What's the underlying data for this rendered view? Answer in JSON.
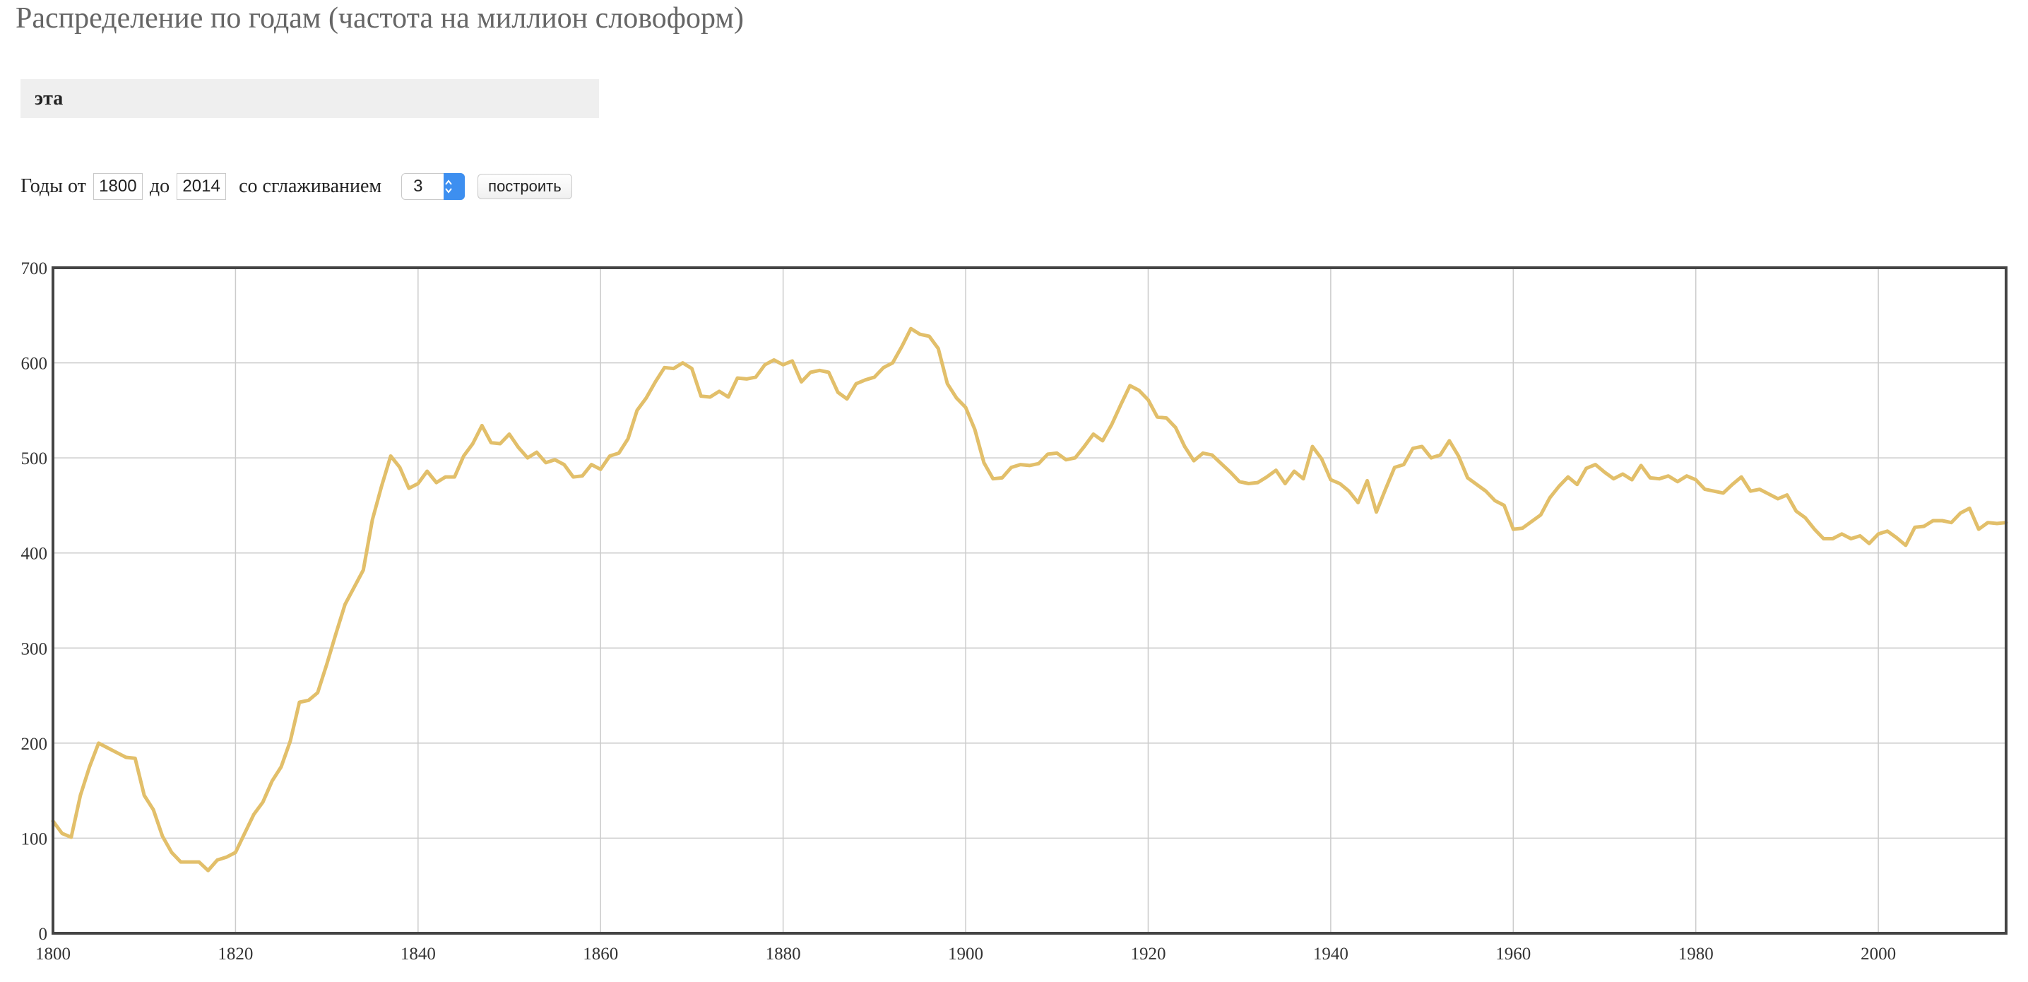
{
  "title": "Распределение по годам (частота на миллион словоформ)",
  "query": "эта",
  "controls": {
    "years_from_label": "Годы от",
    "year_from": "1800",
    "to_label": "до",
    "year_to": "2014",
    "smoothing_label": "со сглаживанием",
    "smoothing": "3",
    "build_label": "построить"
  },
  "colors": {
    "line": "#e2bf6a",
    "grid": "#cccccc",
    "frame": "#444444"
  },
  "chart_data": {
    "type": "line",
    "title": "",
    "xlabel": "",
    "ylabel": "",
    "xlim": [
      1800,
      2014
    ],
    "ylim": [
      0,
      700
    ],
    "grid": true,
    "x_ticks": [
      "1800",
      "1820",
      "1840",
      "1860",
      "1880",
      "1900",
      "1920",
      "1940",
      "1960",
      "1980",
      "2000"
    ],
    "y_ticks": [
      "0",
      "100",
      "200",
      "300",
      "400",
      "500",
      "600",
      "700"
    ],
    "series": [
      {
        "name": "",
        "points": [
          [
            1800,
            118
          ],
          [
            1801,
            105
          ],
          [
            1802,
            101
          ],
          [
            1803,
            145
          ],
          [
            1804,
            175
          ],
          [
            1805,
            200
          ],
          [
            1806,
            195
          ],
          [
            1807,
            190
          ],
          [
            1808,
            185
          ],
          [
            1809,
            184
          ],
          [
            1810,
            145
          ],
          [
            1811,
            130
          ],
          [
            1812,
            102
          ],
          [
            1813,
            85
          ],
          [
            1814,
            75
          ],
          [
            1815,
            75
          ],
          [
            1816,
            75
          ],
          [
            1817,
            66
          ],
          [
            1818,
            77
          ],
          [
            1819,
            80
          ],
          [
            1820,
            85
          ],
          [
            1821,
            105
          ],
          [
            1822,
            125
          ],
          [
            1823,
            138
          ],
          [
            1824,
            160
          ],
          [
            1825,
            175
          ],
          [
            1826,
            202
          ],
          [
            1827,
            243
          ],
          [
            1828,
            245
          ],
          [
            1829,
            253
          ],
          [
            1830,
            283
          ],
          [
            1831,
            315
          ],
          [
            1832,
            346
          ],
          [
            1833,
            364
          ],
          [
            1834,
            382
          ],
          [
            1835,
            435
          ],
          [
            1836,
            470
          ],
          [
            1837,
            502
          ],
          [
            1838,
            490
          ],
          [
            1839,
            468
          ],
          [
            1840,
            473
          ],
          [
            1841,
            486
          ],
          [
            1842,
            474
          ],
          [
            1843,
            480
          ],
          [
            1844,
            480
          ],
          [
            1845,
            502
          ],
          [
            1846,
            515
          ],
          [
            1847,
            534
          ],
          [
            1848,
            516
          ],
          [
            1849,
            515
          ],
          [
            1850,
            525
          ],
          [
            1851,
            511
          ],
          [
            1852,
            500
          ],
          [
            1853,
            506
          ],
          [
            1854,
            495
          ],
          [
            1855,
            498
          ],
          [
            1856,
            493
          ],
          [
            1857,
            480
          ],
          [
            1858,
            481
          ],
          [
            1859,
            493
          ],
          [
            1860,
            488
          ],
          [
            1861,
            502
          ],
          [
            1862,
            505
          ],
          [
            1863,
            520
          ],
          [
            1864,
            550
          ],
          [
            1865,
            563
          ],
          [
            1866,
            580
          ],
          [
            1867,
            595
          ],
          [
            1868,
            594
          ],
          [
            1869,
            600
          ],
          [
            1870,
            594
          ],
          [
            1871,
            565
          ],
          [
            1872,
            564
          ],
          [
            1873,
            570
          ],
          [
            1874,
            564
          ],
          [
            1875,
            584
          ],
          [
            1876,
            583
          ],
          [
            1877,
            585
          ],
          [
            1878,
            598
          ],
          [
            1879,
            603
          ],
          [
            1880,
            598
          ],
          [
            1881,
            602
          ],
          [
            1882,
            580
          ],
          [
            1883,
            590
          ],
          [
            1884,
            592
          ],
          [
            1885,
            590
          ],
          [
            1886,
            569
          ],
          [
            1887,
            562
          ],
          [
            1888,
            578
          ],
          [
            1889,
            582
          ],
          [
            1890,
            585
          ],
          [
            1891,
            595
          ],
          [
            1892,
            600
          ],
          [
            1893,
            617
          ],
          [
            1894,
            636
          ],
          [
            1895,
            630
          ],
          [
            1896,
            628
          ],
          [
            1897,
            615
          ],
          [
            1898,
            578
          ],
          [
            1899,
            563
          ],
          [
            1900,
            553
          ],
          [
            1901,
            530
          ],
          [
            1902,
            495
          ],
          [
            1903,
            478
          ],
          [
            1904,
            479
          ],
          [
            1905,
            490
          ],
          [
            1906,
            493
          ],
          [
            1907,
            492
          ],
          [
            1908,
            494
          ],
          [
            1909,
            504
          ],
          [
            1910,
            505
          ],
          [
            1911,
            498
          ],
          [
            1912,
            500
          ],
          [
            1913,
            512
          ],
          [
            1914,
            525
          ],
          [
            1915,
            518
          ],
          [
            1916,
            535
          ],
          [
            1917,
            556
          ],
          [
            1918,
            576
          ],
          [
            1919,
            571
          ],
          [
            1920,
            561
          ],
          [
            1921,
            543
          ],
          [
            1922,
            542
          ],
          [
            1923,
            532
          ],
          [
            1924,
            512
          ],
          [
            1925,
            497
          ],
          [
            1926,
            505
          ],
          [
            1927,
            503
          ],
          [
            1928,
            494
          ],
          [
            1929,
            485
          ],
          [
            1930,
            475
          ],
          [
            1931,
            473
          ],
          [
            1932,
            474
          ],
          [
            1933,
            480
          ],
          [
            1934,
            487
          ],
          [
            1935,
            473
          ],
          [
            1936,
            486
          ],
          [
            1937,
            478
          ],
          [
            1938,
            512
          ],
          [
            1939,
            499
          ],
          [
            1940,
            477
          ],
          [
            1941,
            473
          ],
          [
            1942,
            465
          ],
          [
            1943,
            453
          ],
          [
            1944,
            476
          ],
          [
            1945,
            443
          ],
          [
            1946,
            467
          ],
          [
            1947,
            490
          ],
          [
            1948,
            493
          ],
          [
            1949,
            510
          ],
          [
            1950,
            512
          ],
          [
            1951,
            500
          ],
          [
            1952,
            503
          ],
          [
            1953,
            518
          ],
          [
            1954,
            502
          ],
          [
            1955,
            479
          ],
          [
            1956,
            472
          ],
          [
            1957,
            465
          ],
          [
            1958,
            455
          ],
          [
            1959,
            450
          ],
          [
            1960,
            425
          ],
          [
            1961,
            426
          ],
          [
            1962,
            433
          ],
          [
            1963,
            440
          ],
          [
            1964,
            458
          ],
          [
            1965,
            470
          ],
          [
            1966,
            480
          ],
          [
            1967,
            472
          ],
          [
            1968,
            489
          ],
          [
            1969,
            493
          ],
          [
            1970,
            485
          ],
          [
            1971,
            478
          ],
          [
            1972,
            483
          ],
          [
            1973,
            477
          ],
          [
            1974,
            492
          ],
          [
            1975,
            479
          ],
          [
            1976,
            478
          ],
          [
            1977,
            481
          ],
          [
            1978,
            475
          ],
          [
            1979,
            481
          ],
          [
            1980,
            477
          ],
          [
            1981,
            467
          ],
          [
            1982,
            465
          ],
          [
            1983,
            463
          ],
          [
            1984,
            472
          ],
          [
            1985,
            480
          ],
          [
            1986,
            465
          ],
          [
            1987,
            467
          ],
          [
            1988,
            462
          ],
          [
            1989,
            457
          ],
          [
            1990,
            461
          ],
          [
            1991,
            444
          ],
          [
            1992,
            437
          ],
          [
            1993,
            425
          ],
          [
            1994,
            415
          ],
          [
            1995,
            415
          ],
          [
            1996,
            420
          ],
          [
            1997,
            415
          ],
          [
            1998,
            418
          ],
          [
            1999,
            410
          ],
          [
            2000,
            420
          ],
          [
            2001,
            423
          ],
          [
            2002,
            416
          ],
          [
            2003,
            408
          ],
          [
            2004,
            427
          ],
          [
            2005,
            428
          ],
          [
            2006,
            434
          ],
          [
            2007,
            434
          ],
          [
            2008,
            432
          ],
          [
            2009,
            442
          ],
          [
            2010,
            447
          ],
          [
            2011,
            425
          ],
          [
            2012,
            432
          ],
          [
            2013,
            431
          ],
          [
            2014,
            432
          ]
        ]
      }
    ]
  }
}
